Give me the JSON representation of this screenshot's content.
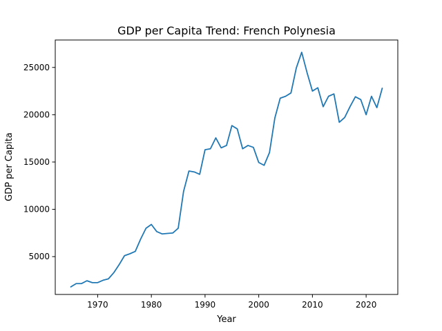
{
  "chart_data": {
    "type": "line",
    "title": "GDP per Capita Trend: French Polynesia",
    "xlabel": "Year",
    "ylabel": "GDP per Capita",
    "xlim": [
      1962.1,
      2025.9
    ],
    "ylim": [
      1000,
      27900
    ],
    "xticks": [
      1970,
      1980,
      1990,
      2000,
      2010,
      2020
    ],
    "yticks": [
      5000,
      10000,
      15000,
      20000,
      25000
    ],
    "grid": false,
    "legend": "none",
    "colors": {
      "line": "#1f77b4"
    },
    "series": [
      {
        "x": [
          1965,
          1966,
          1967,
          1968,
          1969,
          1970,
          1971,
          1972,
          1973,
          1974,
          1975,
          1976,
          1977,
          1978,
          1979,
          1980,
          1981,
          1982,
          1983,
          1984,
          1985,
          1986,
          1987,
          1988,
          1989,
          1990,
          1991,
          1992,
          1993,
          1994,
          1995,
          1996,
          1997,
          1998,
          1999,
          2000,
          2001,
          2002,
          2003,
          2004,
          2005,
          2006,
          2007,
          2008,
          2009,
          2010,
          2011,
          2012,
          2013,
          2014,
          2015,
          2016,
          2017,
          2018,
          2019,
          2020,
          2021,
          2022,
          2023
        ],
        "values": [
          1800,
          2150,
          2150,
          2450,
          2250,
          2250,
          2500,
          2650,
          3300,
          4150,
          5100,
          5300,
          5550,
          6850,
          8000,
          8400,
          7650,
          7400,
          7450,
          7500,
          8000,
          11900,
          14050,
          13950,
          13700,
          16300,
          16400,
          17550,
          16500,
          16750,
          18850,
          18500,
          16400,
          16750,
          16550,
          14950,
          14650,
          16000,
          19650,
          21750,
          21950,
          22300,
          24950,
          26600,
          24450,
          22500,
          22850,
          20850,
          21950,
          22200,
          19200,
          19700,
          20850,
          21900,
          21600,
          20000,
          21950,
          20750,
          22800
        ]
      }
    ]
  }
}
